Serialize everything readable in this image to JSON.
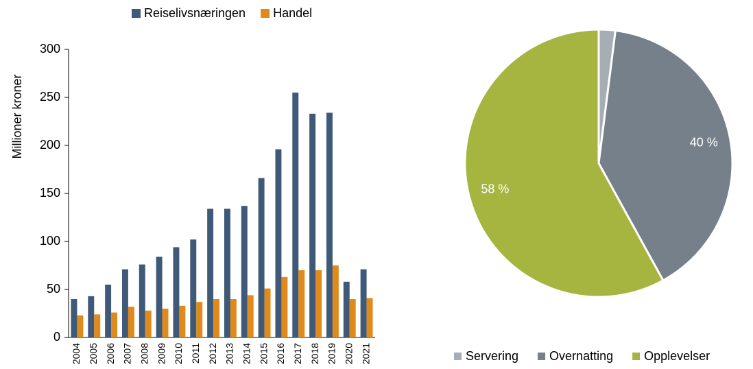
{
  "chart_data": [
    {
      "type": "bar",
      "y_label": "Millioner kroner",
      "categories": [
        "2004",
        "2005",
        "2006",
        "2007",
        "2008",
        "2009",
        "2010",
        "2011",
        "2012",
        "2013",
        "2014",
        "2015",
        "2016",
        "2017",
        "2018",
        "2019",
        "2020",
        "2021"
      ],
      "series": [
        {
          "name": "Reiselivsnæringen",
          "color": "#3e5a78",
          "values": [
            40,
            43,
            55,
            71,
            76,
            84,
            94,
            102,
            134,
            134,
            137,
            166,
            196,
            255,
            233,
            234,
            58,
            71
          ]
        },
        {
          "name": "Handel",
          "color": "#e08a1c",
          "values": [
            23,
            24,
            26,
            32,
            28,
            30,
            33,
            37,
            40,
            40,
            44,
            51,
            63,
            70,
            70,
            75,
            40,
            41
          ]
        }
      ],
      "ylim": [
        0,
        300
      ],
      "yticks": [
        0,
        50,
        100,
        150,
        200,
        250,
        300
      ]
    },
    {
      "type": "pie",
      "categories": [
        "Servering",
        "Overnatting",
        "Opplevelser"
      ],
      "values": [
        2,
        40,
        58
      ],
      "value_labels": [
        null,
        "40 %",
        "58 %"
      ],
      "colors": [
        "#a6adb4",
        "#75808a",
        "#a5b53f"
      ]
    }
  ]
}
